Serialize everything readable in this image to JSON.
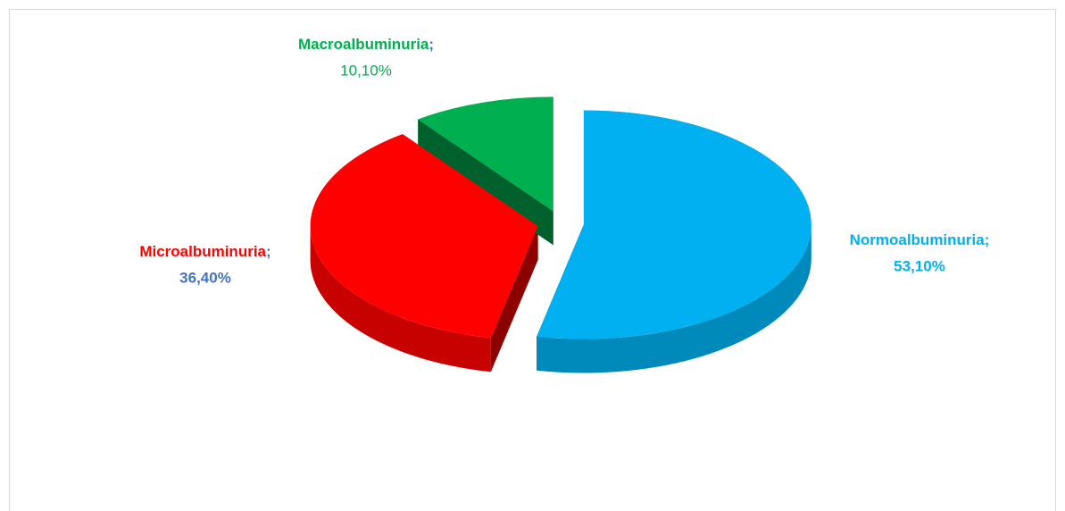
{
  "chart_data": {
    "type": "pie",
    "categories": [
      "Normoalbuminuria",
      "Microalbuminuria",
      "Macroalbuminuria"
    ],
    "values": [
      53.1,
      36.4,
      10.1
    ],
    "value_labels": [
      "53,10%",
      "36,40%",
      "10,10%"
    ],
    "separator": ";",
    "colors": [
      "#00b0f0",
      "#ff0000",
      "#00b050"
    ]
  }
}
